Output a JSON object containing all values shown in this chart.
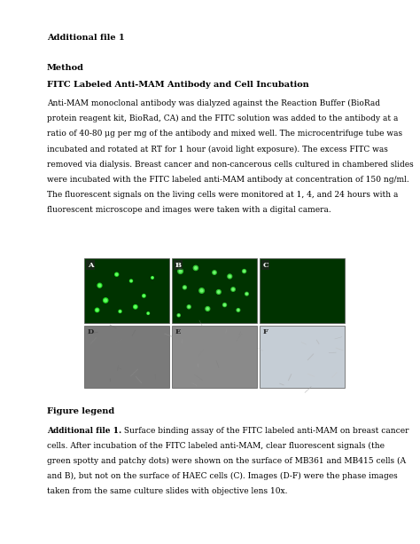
{
  "background_color": "#ffffff",
  "page_width": 4.74,
  "page_height": 6.13,
  "heading1": "Additional file 1",
  "heading2": "Method",
  "heading3": "FITC Labeled Anti-MAM Antibody and Cell Incubation",
  "body_lines": [
    "Anti-MAM monoclonal antibody was dialyzed against the Reaction Buffer (BioRad",
    "protein reagent kit, BioRad, CA) and the FITC solution was added to the antibody at a",
    "ratio of 40-80 μg per mg of the antibody and mixed well. The microcentrifuge tube was",
    "incubated and rotated at RT for 1 hour (avoid light exposure). The excess FITC was",
    "removed via dialysis. Breast cancer and non-cancerous cells cultured in chambered slides",
    "were incubated with the FITC labeled anti-MAM antibody at concentration of 150 ng/ml.",
    "The fluorescent signals on the living cells were monitored at 1, 4, and 24 hours with a",
    "fluorescent microscope and images were taken with a digital camera."
  ],
  "figure_legend_heading": "Figure legend",
  "figure_legend_bold": "Additional file 1.",
  "figure_legend_lines": [
    [
      true,
      "Additional file 1.",
      " Surface binding assay of the FITC labeled anti-MAM on breast cancer"
    ],
    [
      false,
      "",
      "cells. After incubation of the FITC labeled anti-MAM, clear fluorescent signals (the"
    ],
    [
      false,
      "",
      "green spotty and patchy dots) were shown on the surface of MB361 and MB415 cells (A"
    ],
    [
      false,
      "",
      "and B), but not on the surface of HAEC cells (C). Images (D-F) were the phase images"
    ],
    [
      false,
      "",
      "taken from the same culture slides with objective lens 10x."
    ]
  ],
  "panel_labels_top": [
    "A",
    "B",
    "C"
  ],
  "panel_labels_bottom": [
    "D",
    "E",
    "F"
  ],
  "panel_top_color": "#003300",
  "panel_bottom_colors": [
    "#7a7a7a",
    "#8a8a8a",
    "#c5cdd5"
  ],
  "font_size_body": 6.5,
  "font_size_heading": 7.0,
  "font_size_legend": 6.5,
  "font_size_panel_label": 6.0
}
